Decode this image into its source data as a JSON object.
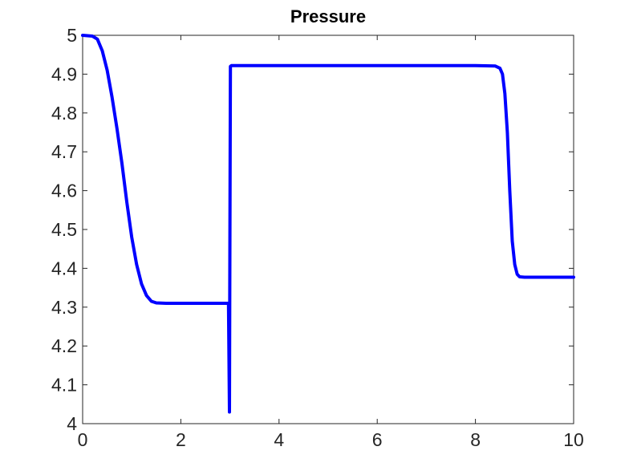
{
  "chart_data": {
    "type": "line",
    "title": "Pressure",
    "xlabel": "",
    "ylabel": "",
    "xlim": [
      0,
      10
    ],
    "ylim": [
      4,
      5
    ],
    "xticks": [
      0,
      2,
      4,
      6,
      8,
      10
    ],
    "yticks": [
      4,
      4.1,
      4.2,
      4.3,
      4.4,
      4.5,
      4.6,
      4.7,
      4.8,
      4.9,
      5
    ],
    "grid": false,
    "series": [
      {
        "color": "#0000ff",
        "x": [
          0,
          0.2,
          0.3,
          0.4,
          0.5,
          0.6,
          0.7,
          0.8,
          0.9,
          1.0,
          1.1,
          1.2,
          1.3,
          1.4,
          1.5,
          1.7,
          2.0,
          2.5,
          2.97,
          2.99,
          3.0,
          3.01,
          3.03,
          3.2,
          4.0,
          5.0,
          6.0,
          7.0,
          8.0,
          8.4,
          8.5,
          8.55,
          8.6,
          8.65,
          8.7,
          8.75,
          8.8,
          8.85,
          8.9,
          9.0,
          9.2,
          9.5,
          10.0
        ],
        "y": [
          5.0,
          4.998,
          4.99,
          4.96,
          4.91,
          4.84,
          4.76,
          4.67,
          4.57,
          4.48,
          4.41,
          4.36,
          4.33,
          4.315,
          4.311,
          4.31,
          4.31,
          4.31,
          4.31,
          4.03,
          4.5,
          4.92,
          4.922,
          4.922,
          4.922,
          4.922,
          4.922,
          4.922,
          4.922,
          4.921,
          4.915,
          4.9,
          4.85,
          4.75,
          4.6,
          4.47,
          4.41,
          4.385,
          4.378,
          4.377,
          4.377,
          4.377,
          4.377
        ]
      }
    ]
  }
}
